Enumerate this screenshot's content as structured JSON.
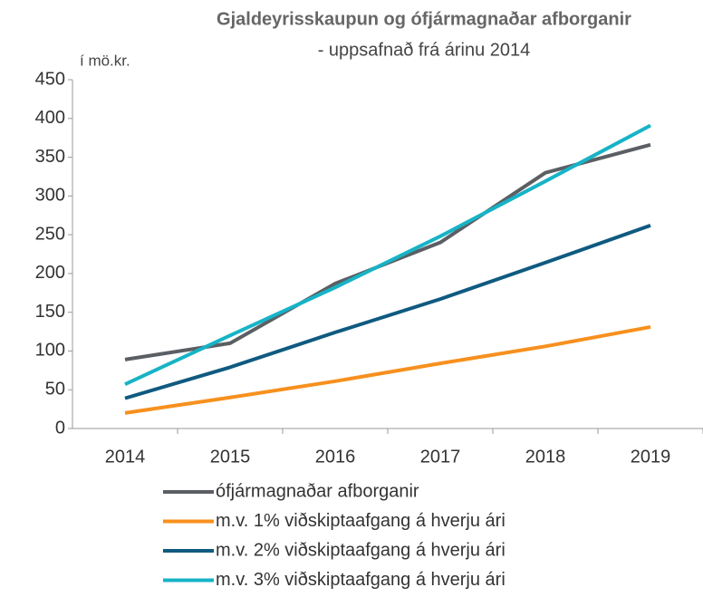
{
  "chart_data": {
    "type": "line",
    "title": "Gjaldeyrisskaupun og ófjármagnaðar afborganir",
    "subtitle": "- uppsafnað frá árinu 2014",
    "y_label": "í mö.kr.",
    "categories": [
      "2014",
      "2015",
      "2016",
      "2017",
      "2018",
      "2019"
    ],
    "series": [
      {
        "name": "ófjármagnaðar afborganir",
        "color": "#5b5f64",
        "values": [
          89,
          110,
          187,
          240,
          330,
          366
        ]
      },
      {
        "name": "m.v. 1% viðskiptaafgang á hverju ári",
        "color": "#f7901e",
        "values": [
          20,
          40,
          61,
          84,
          106,
          131
        ]
      },
      {
        "name": "m.v. 2% viðskiptaafgang á hverju ári",
        "color": "#0f5a80",
        "values": [
          39,
          79,
          124,
          167,
          214,
          262
        ]
      },
      {
        "name": "m.v. 3% viðskiptaafgang á hverju ári",
        "color": "#17b3c6",
        "values": [
          57,
          120,
          182,
          248,
          319,
          391
        ]
      }
    ],
    "ylim": [
      0,
      450
    ],
    "yticks": [
      0,
      50,
      100,
      150,
      200,
      250,
      300,
      350,
      400,
      450
    ],
    "grid": false
  }
}
